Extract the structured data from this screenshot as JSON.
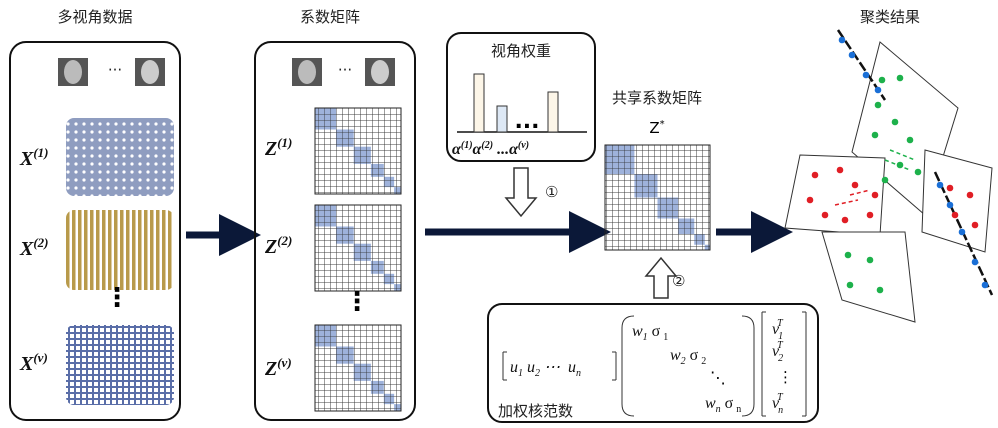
{
  "views": {
    "title": "多视角数据",
    "ellipsis": "···",
    "vdots": "⋮",
    "labels": [
      {
        "base": "X",
        "sup": "(1)"
      },
      {
        "base": "X",
        "sup": "(2)"
      },
      {
        "base": "X",
        "sup": "(v)"
      }
    ]
  },
  "coefficients": {
    "title": "系数矩阵",
    "ellipsis": "···",
    "vdots": "⋮",
    "labels": [
      {
        "base": "Z",
        "sup": "(1)"
      },
      {
        "base": "Z",
        "sup": "(2)"
      },
      {
        "base": "Z",
        "sup": "(v)"
      }
    ]
  },
  "weights": {
    "title": "视角权重",
    "dots": "...",
    "label_ellipsis": "...",
    "labels": [
      {
        "base": "α",
        "sup": "(1)"
      },
      {
        "base": "α",
        "sup": "(2)"
      },
      {
        "base": "α",
        "sup": "(v)"
      }
    ]
  },
  "shared": {
    "title": "共享系数矩阵",
    "symbol": {
      "base": "Z",
      "sup": "*"
    }
  },
  "steps": [
    "①",
    "②"
  ],
  "nuclear_norm": {
    "caption": "加权核范数",
    "u": [
      {
        "base": "u",
        "sub": "1"
      },
      {
        "base": "u",
        "sub": "2"
      },
      {
        "base": "⋯",
        "sub": ""
      },
      {
        "base": "u",
        "sub": "n"
      }
    ],
    "sigma": [
      {
        "w": "w",
        "w_sub": "1",
        "s": "σ",
        "s_sub": "1"
      },
      {
        "w": "w",
        "w_sub": "2",
        "s": "σ",
        "s_sub": "2"
      },
      {
        "w": "w",
        "w_sub": "n",
        "s": "σ",
        "s_sub": "n"
      }
    ],
    "ddots": "⋱",
    "vdots": "⋮",
    "v": [
      {
        "base": "v",
        "sub": "1",
        "sup": "T"
      },
      {
        "base": "v",
        "sub": "2",
        "sup": "T"
      },
      {
        "base": "v",
        "sub": "n",
        "sup": "T"
      }
    ]
  },
  "result": {
    "title": "聚类结果"
  }
}
